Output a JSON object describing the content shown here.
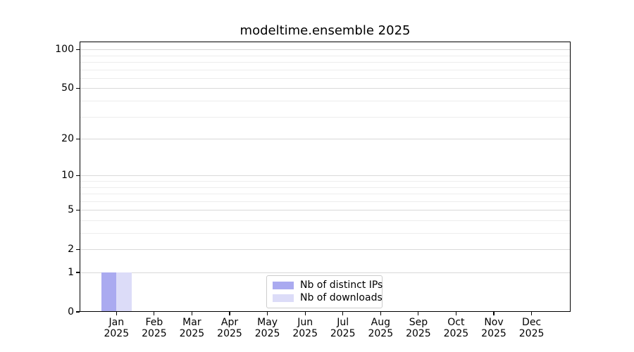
{
  "chart_data": {
    "type": "bar",
    "title": "modeltime.ensemble 2025",
    "x_categories": [
      "Jan",
      "Feb",
      "Mar",
      "Apr",
      "May",
      "Jun",
      "Jul",
      "Aug",
      "Sep",
      "Oct",
      "Nov",
      "Dec"
    ],
    "x_year": "2025",
    "series": [
      {
        "name": "Nb of distinct IPs",
        "color": "#aaaaf0",
        "values": [
          1,
          0,
          0,
          0,
          0,
          0,
          0,
          0,
          0,
          0,
          0,
          0
        ]
      },
      {
        "name": "Nb of downloads",
        "color": "#dcdcf8",
        "values": [
          1,
          0,
          0,
          0,
          0,
          0,
          0,
          0,
          0,
          0,
          0,
          0
        ]
      }
    ],
    "y_scale": "log1p",
    "y_major_ticks": [
      0,
      1,
      2,
      5,
      10,
      20,
      50,
      100
    ],
    "y_minor_ticks": [
      3,
      4,
      6,
      7,
      8,
      9,
      30,
      40,
      60,
      70,
      80,
      90
    ],
    "ylim": [
      0,
      115
    ],
    "grid": "horizontal",
    "legend_position": "lower center",
    "colors": {
      "spine": "#000000",
      "grid_major": "#d9d9d9",
      "grid_minor": "#ededed",
      "legend_border": "#cccccc"
    }
  }
}
